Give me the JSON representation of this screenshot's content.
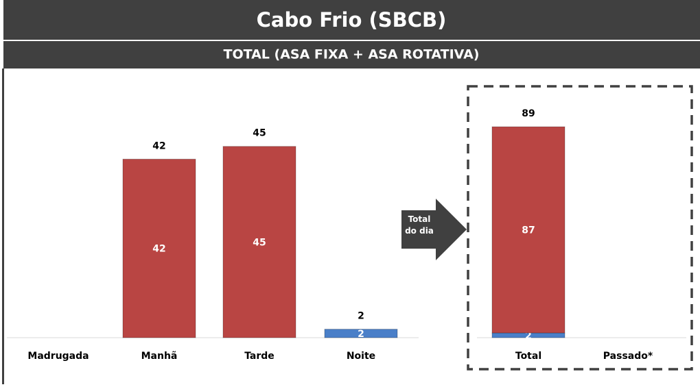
{
  "header": {
    "title": "Cabo Frio (SBCB)",
    "subtitle": "TOTAL (ASA FIXA + ASA ROTATIVA)"
  },
  "annotation": "Total do dia",
  "chart_data": [
    {
      "type": "bar",
      "stacked": true,
      "categories": [
        "Madrugada",
        "Manhã",
        "Tarde",
        "Noite"
      ],
      "series": [
        {
          "color": "#b94543",
          "values": [
            null,
            42,
            45,
            null
          ]
        },
        {
          "color": "#4a7fc8",
          "values": [
            null,
            null,
            null,
            2
          ]
        }
      ],
      "totals": [
        null,
        42,
        45,
        2
      ],
      "ylim": [
        0,
        63
      ]
    },
    {
      "type": "bar",
      "stacked": true,
      "categories": [
        "Total",
        "Passado*"
      ],
      "series": [
        {
          "color": "#b94543",
          "values": [
            87,
            null
          ]
        },
        {
          "color": "#4a7fc8",
          "values": [
            2,
            null
          ]
        }
      ],
      "totals": [
        89,
        null
      ],
      "ylim": [
        0,
        113
      ]
    }
  ]
}
